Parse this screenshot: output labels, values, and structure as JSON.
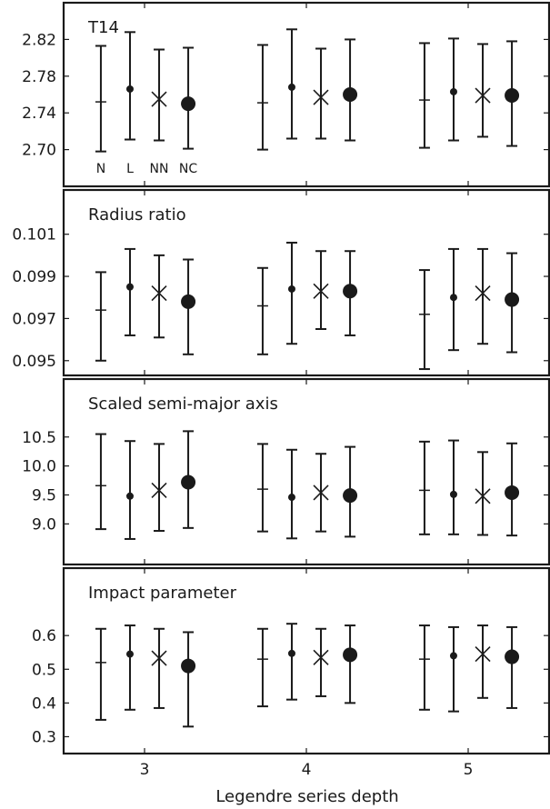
{
  "chart_data": [
    {
      "type": "errorbar",
      "title": "T14",
      "ylim": [
        2.66,
        2.86
      ],
      "yticks": [
        "2.70",
        "2.74",
        "2.78",
        "2.82"
      ],
      "method_labels": [
        "N",
        "L",
        "NN",
        "NC"
      ],
      "series": [
        {
          "marker": "none",
          "points": [
            {
              "x": 3,
              "y": 2.752,
              "lo": 2.698,
              "hi": 2.813
            },
            {
              "x": 4,
              "y": 2.751,
              "lo": 2.7,
              "hi": 2.814
            },
            {
              "x": 5,
              "y": 2.754,
              "lo": 2.702,
              "hi": 2.816
            }
          ]
        },
        {
          "marker": "small-dot",
          "points": [
            {
              "x": 3,
              "y": 2.766,
              "lo": 2.711,
              "hi": 2.828
            },
            {
              "x": 4,
              "y": 2.768,
              "lo": 2.712,
              "hi": 2.831
            },
            {
              "x": 5,
              "y": 2.763,
              "lo": 2.71,
              "hi": 2.821
            }
          ]
        },
        {
          "marker": "x",
          "points": [
            {
              "x": 3,
              "y": 2.755,
              "lo": 2.71,
              "hi": 2.809
            },
            {
              "x": 4,
              "y": 2.757,
              "lo": 2.712,
              "hi": 2.81
            },
            {
              "x": 5,
              "y": 2.759,
              "lo": 2.714,
              "hi": 2.815
            }
          ]
        },
        {
          "marker": "large-dot",
          "points": [
            {
              "x": 3,
              "y": 2.75,
              "lo": 2.701,
              "hi": 2.811
            },
            {
              "x": 4,
              "y": 2.76,
              "lo": 2.71,
              "hi": 2.82
            },
            {
              "x": 5,
              "y": 2.759,
              "lo": 2.704,
              "hi": 2.818
            }
          ]
        }
      ]
    },
    {
      "type": "errorbar",
      "title": "Radius ratio",
      "ylim": [
        0.0943,
        0.1031
      ],
      "yticks": [
        "0.095",
        "0.097",
        "0.099",
        "0.101"
      ],
      "series": [
        {
          "marker": "none",
          "points": [
            {
              "x": 3,
              "y": 0.0974,
              "lo": 0.095,
              "hi": 0.0992
            },
            {
              "x": 4,
              "y": 0.0976,
              "lo": 0.0953,
              "hi": 0.0994
            },
            {
              "x": 5,
              "y": 0.0972,
              "lo": 0.0946,
              "hi": 0.0993
            }
          ]
        },
        {
          "marker": "small-dot",
          "points": [
            {
              "x": 3,
              "y": 0.0985,
              "lo": 0.0962,
              "hi": 0.1003
            },
            {
              "x": 4,
              "y": 0.0984,
              "lo": 0.0958,
              "hi": 0.1006
            },
            {
              "x": 5,
              "y": 0.098,
              "lo": 0.0955,
              "hi": 0.1003
            }
          ]
        },
        {
          "marker": "x",
          "points": [
            {
              "x": 3,
              "y": 0.0982,
              "lo": 0.0961,
              "hi": 0.1
            },
            {
              "x": 4,
              "y": 0.0983,
              "lo": 0.0965,
              "hi": 0.1002
            },
            {
              "x": 5,
              "y": 0.0982,
              "lo": 0.0958,
              "hi": 0.1003
            }
          ]
        },
        {
          "marker": "large-dot",
          "points": [
            {
              "x": 3,
              "y": 0.0978,
              "lo": 0.0953,
              "hi": 0.0998
            },
            {
              "x": 4,
              "y": 0.0983,
              "lo": 0.0962,
              "hi": 0.1002
            },
            {
              "x": 5,
              "y": 0.0979,
              "lo": 0.0954,
              "hi": 0.1001
            }
          ]
        }
      ]
    },
    {
      "type": "errorbar",
      "title": "Scaled semi-major axis",
      "ylim": [
        8.3,
        11.5
      ],
      "yticks": [
        "9.0",
        "9.5",
        "10.0",
        "10.5"
      ],
      "series": [
        {
          "marker": "none",
          "points": [
            {
              "x": 3,
              "y": 9.66,
              "lo": 8.91,
              "hi": 10.55
            },
            {
              "x": 4,
              "y": 9.6,
              "lo": 8.87,
              "hi": 10.38
            },
            {
              "x": 5,
              "y": 9.58,
              "lo": 8.82,
              "hi": 10.42
            }
          ]
        },
        {
          "marker": "small-dot",
          "points": [
            {
              "x": 3,
              "y": 9.48,
              "lo": 8.74,
              "hi": 10.43
            },
            {
              "x": 4,
              "y": 9.46,
              "lo": 8.75,
              "hi": 10.28
            },
            {
              "x": 5,
              "y": 9.51,
              "lo": 8.82,
              "hi": 10.44
            }
          ]
        },
        {
          "marker": "x",
          "points": [
            {
              "x": 3,
              "y": 9.58,
              "lo": 8.88,
              "hi": 10.38
            },
            {
              "x": 4,
              "y": 9.54,
              "lo": 8.87,
              "hi": 10.21
            },
            {
              "x": 5,
              "y": 9.48,
              "lo": 8.81,
              "hi": 10.24
            }
          ]
        },
        {
          "marker": "large-dot",
          "points": [
            {
              "x": 3,
              "y": 9.72,
              "lo": 8.93,
              "hi": 10.6
            },
            {
              "x": 4,
              "y": 9.49,
              "lo": 8.78,
              "hi": 10.33
            },
            {
              "x": 5,
              "y": 9.54,
              "lo": 8.8,
              "hi": 10.39
            }
          ]
        }
      ]
    },
    {
      "type": "errorbar",
      "title": "Impact parameter",
      "ylim": [
        0.25,
        0.8
      ],
      "yticks": [
        "0.3",
        "0.4",
        "0.5",
        "0.6"
      ],
      "series": [
        {
          "marker": "none",
          "points": [
            {
              "x": 3,
              "y": 0.52,
              "lo": 0.35,
              "hi": 0.62
            },
            {
              "x": 4,
              "y": 0.53,
              "lo": 0.39,
              "hi": 0.62
            },
            {
              "x": 5,
              "y": 0.53,
              "lo": 0.38,
              "hi": 0.63
            }
          ]
        },
        {
          "marker": "small-dot",
          "points": [
            {
              "x": 3,
              "y": 0.545,
              "lo": 0.38,
              "hi": 0.63
            },
            {
              "x": 4,
              "y": 0.547,
              "lo": 0.41,
              "hi": 0.635
            },
            {
              "x": 5,
              "y": 0.54,
              "lo": 0.375,
              "hi": 0.625
            }
          ]
        },
        {
          "marker": "x",
          "points": [
            {
              "x": 3,
              "y": 0.533,
              "lo": 0.385,
              "hi": 0.62
            },
            {
              "x": 4,
              "y": 0.535,
              "lo": 0.42,
              "hi": 0.62
            },
            {
              "x": 5,
              "y": 0.545,
              "lo": 0.415,
              "hi": 0.63
            }
          ]
        },
        {
          "marker": "large-dot",
          "points": [
            {
              "x": 3,
              "y": 0.51,
              "lo": 0.33,
              "hi": 0.61
            },
            {
              "x": 4,
              "y": 0.543,
              "lo": 0.4,
              "hi": 0.63
            },
            {
              "x": 5,
              "y": 0.537,
              "lo": 0.385,
              "hi": 0.625
            }
          ]
        }
      ]
    }
  ],
  "x_axis": {
    "label": "Legendre series depth",
    "ticks": [
      "3",
      "4",
      "5"
    ],
    "range": [
      2.5,
      5.5
    ]
  },
  "colors": {
    "ink": "#1a1a1a",
    "background": "#ffffff"
  }
}
